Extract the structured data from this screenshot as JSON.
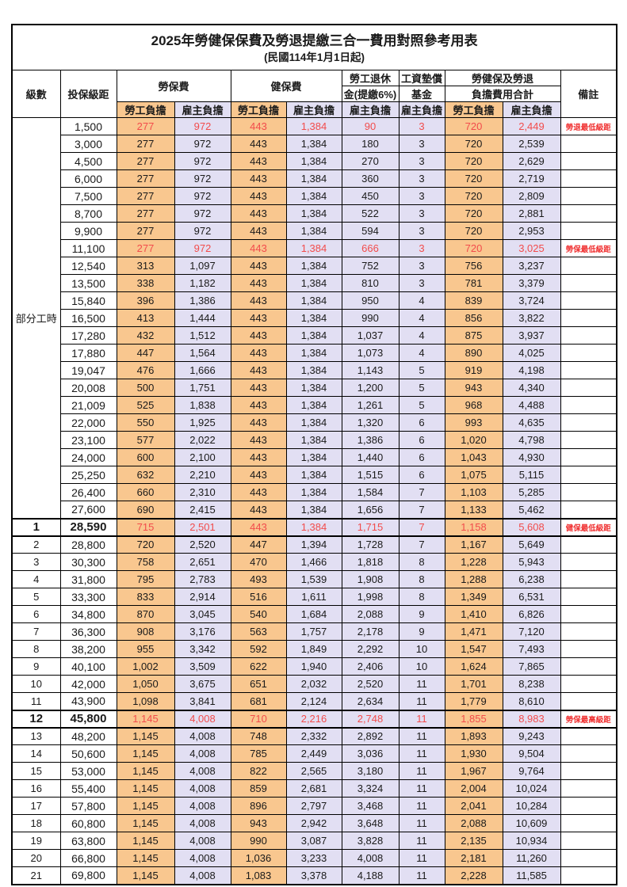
{
  "title": "2025年勞健保保費及勞退提繳三合一費用對照參考用表",
  "subtitle": "(民國114年1月1日起)",
  "colors": {
    "employee_fill": "#F9C78F",
    "employer_fill": "#E2DFF3",
    "highlight_text": "#F24C4C",
    "remark_text": "#F03030",
    "border": "#000000"
  },
  "table": {
    "header": {
      "level": "級數",
      "bracket": "投保級距",
      "labor_insurance": "勞保費",
      "health_insurance": "健保費",
      "pension_line1": "勞工退休",
      "pension_line2": "金(提繳6%)",
      "wage_fund_line1": "工資墊償",
      "wage_fund_line2": "基金",
      "total_line1": "勞健保及勞退",
      "total_line2": "負擔費用合計",
      "employee_share": "勞工負擔",
      "employer_share": "雇主負擔",
      "remark": "備註",
      "part_time": "部分工時"
    },
    "part_time_span": 23,
    "rows": [
      {
        "level": "",
        "bracket": "1,500",
        "li_emp": "277",
        "li_er": "972",
        "hi_emp": "443",
        "hi_er": "1,384",
        "pension": "90",
        "fund": "3",
        "tot_emp": "720",
        "tot_er": "2,449",
        "remark": "勞退最低級距",
        "hl": true,
        "bold": false
      },
      {
        "level": "",
        "bracket": "3,000",
        "li_emp": "277",
        "li_er": "972",
        "hi_emp": "443",
        "hi_er": "1,384",
        "pension": "180",
        "fund": "3",
        "tot_emp": "720",
        "tot_er": "2,539",
        "remark": "",
        "hl": false,
        "bold": false
      },
      {
        "level": "",
        "bracket": "4,500",
        "li_emp": "277",
        "li_er": "972",
        "hi_emp": "443",
        "hi_er": "1,384",
        "pension": "270",
        "fund": "3",
        "tot_emp": "720",
        "tot_er": "2,629",
        "remark": "",
        "hl": false,
        "bold": false
      },
      {
        "level": "",
        "bracket": "6,000",
        "li_emp": "277",
        "li_er": "972",
        "hi_emp": "443",
        "hi_er": "1,384",
        "pension": "360",
        "fund": "3",
        "tot_emp": "720",
        "tot_er": "2,719",
        "remark": "",
        "hl": false,
        "bold": false
      },
      {
        "level": "",
        "bracket": "7,500",
        "li_emp": "277",
        "li_er": "972",
        "hi_emp": "443",
        "hi_er": "1,384",
        "pension": "450",
        "fund": "3",
        "tot_emp": "720",
        "tot_er": "2,809",
        "remark": "",
        "hl": false,
        "bold": false
      },
      {
        "level": "",
        "bracket": "8,700",
        "li_emp": "277",
        "li_er": "972",
        "hi_emp": "443",
        "hi_er": "1,384",
        "pension": "522",
        "fund": "3",
        "tot_emp": "720",
        "tot_er": "2,881",
        "remark": "",
        "hl": false,
        "bold": false
      },
      {
        "level": "",
        "bracket": "9,900",
        "li_emp": "277",
        "li_er": "972",
        "hi_emp": "443",
        "hi_er": "1,384",
        "pension": "594",
        "fund": "3",
        "tot_emp": "720",
        "tot_er": "2,953",
        "remark": "",
        "hl": false,
        "bold": false
      },
      {
        "level": "",
        "bracket": "11,100",
        "li_emp": "277",
        "li_er": "972",
        "hi_emp": "443",
        "hi_er": "1,384",
        "pension": "666",
        "fund": "3",
        "tot_emp": "720",
        "tot_er": "3,025",
        "remark": "勞保最低級距",
        "hl": true,
        "bold": false
      },
      {
        "level": "",
        "bracket": "12,540",
        "li_emp": "313",
        "li_er": "1,097",
        "hi_emp": "443",
        "hi_er": "1,384",
        "pension": "752",
        "fund": "3",
        "tot_emp": "756",
        "tot_er": "3,237",
        "remark": "",
        "hl": false,
        "bold": false
      },
      {
        "level": "",
        "bracket": "13,500",
        "li_emp": "338",
        "li_er": "1,182",
        "hi_emp": "443",
        "hi_er": "1,384",
        "pension": "810",
        "fund": "3",
        "tot_emp": "781",
        "tot_er": "3,379",
        "remark": "",
        "hl": false,
        "bold": false
      },
      {
        "level": "",
        "bracket": "15,840",
        "li_emp": "396",
        "li_er": "1,386",
        "hi_emp": "443",
        "hi_er": "1,384",
        "pension": "950",
        "fund": "4",
        "tot_emp": "839",
        "tot_er": "3,724",
        "remark": "",
        "hl": false,
        "bold": false
      },
      {
        "level": "",
        "bracket": "16,500",
        "li_emp": "413",
        "li_er": "1,444",
        "hi_emp": "443",
        "hi_er": "1,384",
        "pension": "990",
        "fund": "4",
        "tot_emp": "856",
        "tot_er": "3,822",
        "remark": "",
        "hl": false,
        "bold": false
      },
      {
        "level": "",
        "bracket": "17,280",
        "li_emp": "432",
        "li_er": "1,512",
        "hi_emp": "443",
        "hi_er": "1,384",
        "pension": "1,037",
        "fund": "4",
        "tot_emp": "875",
        "tot_er": "3,937",
        "remark": "",
        "hl": false,
        "bold": false
      },
      {
        "level": "",
        "bracket": "17,880",
        "li_emp": "447",
        "li_er": "1,564",
        "hi_emp": "443",
        "hi_er": "1,384",
        "pension": "1,073",
        "fund": "4",
        "tot_emp": "890",
        "tot_er": "4,025",
        "remark": "",
        "hl": false,
        "bold": false
      },
      {
        "level": "",
        "bracket": "19,047",
        "li_emp": "476",
        "li_er": "1,666",
        "hi_emp": "443",
        "hi_er": "1,384",
        "pension": "1,143",
        "fund": "5",
        "tot_emp": "919",
        "tot_er": "4,198",
        "remark": "",
        "hl": false,
        "bold": false
      },
      {
        "level": "",
        "bracket": "20,008",
        "li_emp": "500",
        "li_er": "1,751",
        "hi_emp": "443",
        "hi_er": "1,384",
        "pension": "1,200",
        "fund": "5",
        "tot_emp": "943",
        "tot_er": "4,340",
        "remark": "",
        "hl": false,
        "bold": false
      },
      {
        "level": "",
        "bracket": "21,009",
        "li_emp": "525",
        "li_er": "1,838",
        "hi_emp": "443",
        "hi_er": "1,384",
        "pension": "1,261",
        "fund": "5",
        "tot_emp": "968",
        "tot_er": "4,488",
        "remark": "",
        "hl": false,
        "bold": false
      },
      {
        "level": "",
        "bracket": "22,000",
        "li_emp": "550",
        "li_er": "1,925",
        "hi_emp": "443",
        "hi_er": "1,384",
        "pension": "1,320",
        "fund": "6",
        "tot_emp": "993",
        "tot_er": "4,635",
        "remark": "",
        "hl": false,
        "bold": false
      },
      {
        "level": "",
        "bracket": "23,100",
        "li_emp": "577",
        "li_er": "2,022",
        "hi_emp": "443",
        "hi_er": "1,384",
        "pension": "1,386",
        "fund": "6",
        "tot_emp": "1,020",
        "tot_er": "4,798",
        "remark": "",
        "hl": false,
        "bold": false
      },
      {
        "level": "",
        "bracket": "24,000",
        "li_emp": "600",
        "li_er": "2,100",
        "hi_emp": "443",
        "hi_er": "1,384",
        "pension": "1,440",
        "fund": "6",
        "tot_emp": "1,043",
        "tot_er": "4,930",
        "remark": "",
        "hl": false,
        "bold": false
      },
      {
        "level": "",
        "bracket": "25,250",
        "li_emp": "632",
        "li_er": "2,210",
        "hi_emp": "443",
        "hi_er": "1,384",
        "pension": "1,515",
        "fund": "6",
        "tot_emp": "1,075",
        "tot_er": "5,115",
        "remark": "",
        "hl": false,
        "bold": false
      },
      {
        "level": "",
        "bracket": "26,400",
        "li_emp": "660",
        "li_er": "2,310",
        "hi_emp": "443",
        "hi_er": "1,384",
        "pension": "1,584",
        "fund": "7",
        "tot_emp": "1,103",
        "tot_er": "5,285",
        "remark": "",
        "hl": false,
        "bold": false
      },
      {
        "level": "",
        "bracket": "27,600",
        "li_emp": "690",
        "li_er": "2,415",
        "hi_emp": "443",
        "hi_er": "1,384",
        "pension": "1,656",
        "fund": "7",
        "tot_emp": "1,133",
        "tot_er": "5,462",
        "remark": "",
        "hl": false,
        "bold": false
      },
      {
        "level": "1",
        "bracket": "28,590",
        "li_emp": "715",
        "li_er": "2,501",
        "hi_emp": "443",
        "hi_er": "1,384",
        "pension": "1,715",
        "fund": "7",
        "tot_emp": "1,158",
        "tot_er": "5,608",
        "remark": "健保最低級距",
        "hl": true,
        "bold": true
      },
      {
        "level": "2",
        "bracket": "28,800",
        "li_emp": "720",
        "li_er": "2,520",
        "hi_emp": "447",
        "hi_er": "1,394",
        "pension": "1,728",
        "fund": "7",
        "tot_emp": "1,167",
        "tot_er": "5,649",
        "remark": "",
        "hl": false,
        "bold": false
      },
      {
        "level": "3",
        "bracket": "30,300",
        "li_emp": "758",
        "li_er": "2,651",
        "hi_emp": "470",
        "hi_er": "1,466",
        "pension": "1,818",
        "fund": "8",
        "tot_emp": "1,228",
        "tot_er": "5,943",
        "remark": "",
        "hl": false,
        "bold": false
      },
      {
        "level": "4",
        "bracket": "31,800",
        "li_emp": "795",
        "li_er": "2,783",
        "hi_emp": "493",
        "hi_er": "1,539",
        "pension": "1,908",
        "fund": "8",
        "tot_emp": "1,288",
        "tot_er": "6,238",
        "remark": "",
        "hl": false,
        "bold": false
      },
      {
        "level": "5",
        "bracket": "33,300",
        "li_emp": "833",
        "li_er": "2,914",
        "hi_emp": "516",
        "hi_er": "1,611",
        "pension": "1,998",
        "fund": "8",
        "tot_emp": "1,349",
        "tot_er": "6,531",
        "remark": "",
        "hl": false,
        "bold": false
      },
      {
        "level": "6",
        "bracket": "34,800",
        "li_emp": "870",
        "li_er": "3,045",
        "hi_emp": "540",
        "hi_er": "1,684",
        "pension": "2,088",
        "fund": "9",
        "tot_emp": "1,410",
        "tot_er": "6,826",
        "remark": "",
        "hl": false,
        "bold": false
      },
      {
        "level": "7",
        "bracket": "36,300",
        "li_emp": "908",
        "li_er": "3,176",
        "hi_emp": "563",
        "hi_er": "1,757",
        "pension": "2,178",
        "fund": "9",
        "tot_emp": "1,471",
        "tot_er": "7,120",
        "remark": "",
        "hl": false,
        "bold": false
      },
      {
        "level": "8",
        "bracket": "38,200",
        "li_emp": "955",
        "li_er": "3,342",
        "hi_emp": "592",
        "hi_er": "1,849",
        "pension": "2,292",
        "fund": "10",
        "tot_emp": "1,547",
        "tot_er": "7,493",
        "remark": "",
        "hl": false,
        "bold": false
      },
      {
        "level": "9",
        "bracket": "40,100",
        "li_emp": "1,002",
        "li_er": "3,509",
        "hi_emp": "622",
        "hi_er": "1,940",
        "pension": "2,406",
        "fund": "10",
        "tot_emp": "1,624",
        "tot_er": "7,865",
        "remark": "",
        "hl": false,
        "bold": false
      },
      {
        "level": "10",
        "bracket": "42,000",
        "li_emp": "1,050",
        "li_er": "3,675",
        "hi_emp": "651",
        "hi_er": "2,032",
        "pension": "2,520",
        "fund": "11",
        "tot_emp": "1,701",
        "tot_er": "8,238",
        "remark": "",
        "hl": false,
        "bold": false
      },
      {
        "level": "11",
        "bracket": "43,900",
        "li_emp": "1,098",
        "li_er": "3,841",
        "hi_emp": "681",
        "hi_er": "2,124",
        "pension": "2,634",
        "fund": "11",
        "tot_emp": "1,779",
        "tot_er": "8,610",
        "remark": "",
        "hl": false,
        "bold": false
      },
      {
        "level": "12",
        "bracket": "45,800",
        "li_emp": "1,145",
        "li_er": "4,008",
        "hi_emp": "710",
        "hi_er": "2,216",
        "pension": "2,748",
        "fund": "11",
        "tot_emp": "1,855",
        "tot_er": "8,983",
        "remark": "勞保最高級距",
        "hl": true,
        "bold": true
      },
      {
        "level": "13",
        "bracket": "48,200",
        "li_emp": "1,145",
        "li_er": "4,008",
        "hi_emp": "748",
        "hi_er": "2,332",
        "pension": "2,892",
        "fund": "11",
        "tot_emp": "1,893",
        "tot_er": "9,243",
        "remark": "",
        "hl": false,
        "bold": false
      },
      {
        "level": "14",
        "bracket": "50,600",
        "li_emp": "1,145",
        "li_er": "4,008",
        "hi_emp": "785",
        "hi_er": "2,449",
        "pension": "3,036",
        "fund": "11",
        "tot_emp": "1,930",
        "tot_er": "9,504",
        "remark": "",
        "hl": false,
        "bold": false
      },
      {
        "level": "15",
        "bracket": "53,000",
        "li_emp": "1,145",
        "li_er": "4,008",
        "hi_emp": "822",
        "hi_er": "2,565",
        "pension": "3,180",
        "fund": "11",
        "tot_emp": "1,967",
        "tot_er": "9,764",
        "remark": "",
        "hl": false,
        "bold": false
      },
      {
        "level": "16",
        "bracket": "55,400",
        "li_emp": "1,145",
        "li_er": "4,008",
        "hi_emp": "859",
        "hi_er": "2,681",
        "pension": "3,324",
        "fund": "11",
        "tot_emp": "2,004",
        "tot_er": "10,024",
        "remark": "",
        "hl": false,
        "bold": false
      },
      {
        "level": "17",
        "bracket": "57,800",
        "li_emp": "1,145",
        "li_er": "4,008",
        "hi_emp": "896",
        "hi_er": "2,797",
        "pension": "3,468",
        "fund": "11",
        "tot_emp": "2,041",
        "tot_er": "10,284",
        "remark": "",
        "hl": false,
        "bold": false
      },
      {
        "level": "18",
        "bracket": "60,800",
        "li_emp": "1,145",
        "li_er": "4,008",
        "hi_emp": "943",
        "hi_er": "2,942",
        "pension": "3,648",
        "fund": "11",
        "tot_emp": "2,088",
        "tot_er": "10,609",
        "remark": "",
        "hl": false,
        "bold": false
      },
      {
        "level": "19",
        "bracket": "63,800",
        "li_emp": "1,145",
        "li_er": "4,008",
        "hi_emp": "990",
        "hi_er": "3,087",
        "pension": "3,828",
        "fund": "11",
        "tot_emp": "2,135",
        "tot_er": "10,934",
        "remark": "",
        "hl": false,
        "bold": false
      },
      {
        "level": "20",
        "bracket": "66,800",
        "li_emp": "1,145",
        "li_er": "4,008",
        "hi_emp": "1,036",
        "hi_er": "3,233",
        "pension": "4,008",
        "fund": "11",
        "tot_emp": "2,181",
        "tot_er": "11,260",
        "remark": "",
        "hl": false,
        "bold": false
      },
      {
        "level": "21",
        "bracket": "69,800",
        "li_emp": "1,145",
        "li_er": "4,008",
        "hi_emp": "1,083",
        "hi_er": "3,378",
        "pension": "4,188",
        "fund": "11",
        "tot_emp": "2,228",
        "tot_er": "11,585",
        "remark": "",
        "hl": false,
        "bold": false
      }
    ]
  }
}
